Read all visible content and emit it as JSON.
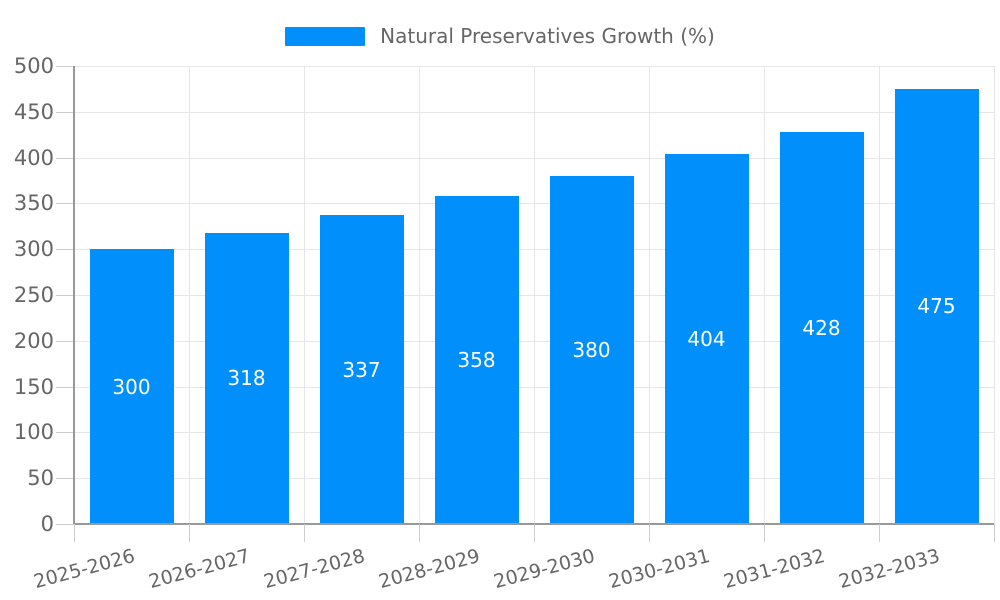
{
  "legend": {
    "label": "Natural Preservatives Growth (%)",
    "swatch_color": "#008FFB"
  },
  "chart_data": {
    "type": "bar",
    "title": "",
    "xlabel": "",
    "ylabel": "",
    "categories": [
      "2025-2026",
      "2026-2027",
      "2027-2028",
      "2028-2029",
      "2029-2030",
      "2030-2031",
      "2031-2032",
      "2032-2033"
    ],
    "series": [
      {
        "name": "Natural Preservatives Growth (%)",
        "values": [
          300,
          318,
          337,
          358,
          380,
          404,
          428,
          475
        ],
        "color": "#008FFB"
      }
    ],
    "data_labels": true,
    "data_label_position": "center",
    "ylim": [
      0,
      500
    ],
    "yticks": [
      0,
      50,
      100,
      150,
      200,
      250,
      300,
      350,
      400,
      450,
      500
    ],
    "grid": true,
    "x_label_rotation_deg": -15,
    "legend_position": "top-center",
    "colors": {
      "bar": "#008FFB",
      "grid": "#e6e6e6",
      "axis": "#999999",
      "tick": "#cccccc",
      "text": "#666666",
      "data_label": "#ffffff",
      "background": "#ffffff"
    }
  }
}
